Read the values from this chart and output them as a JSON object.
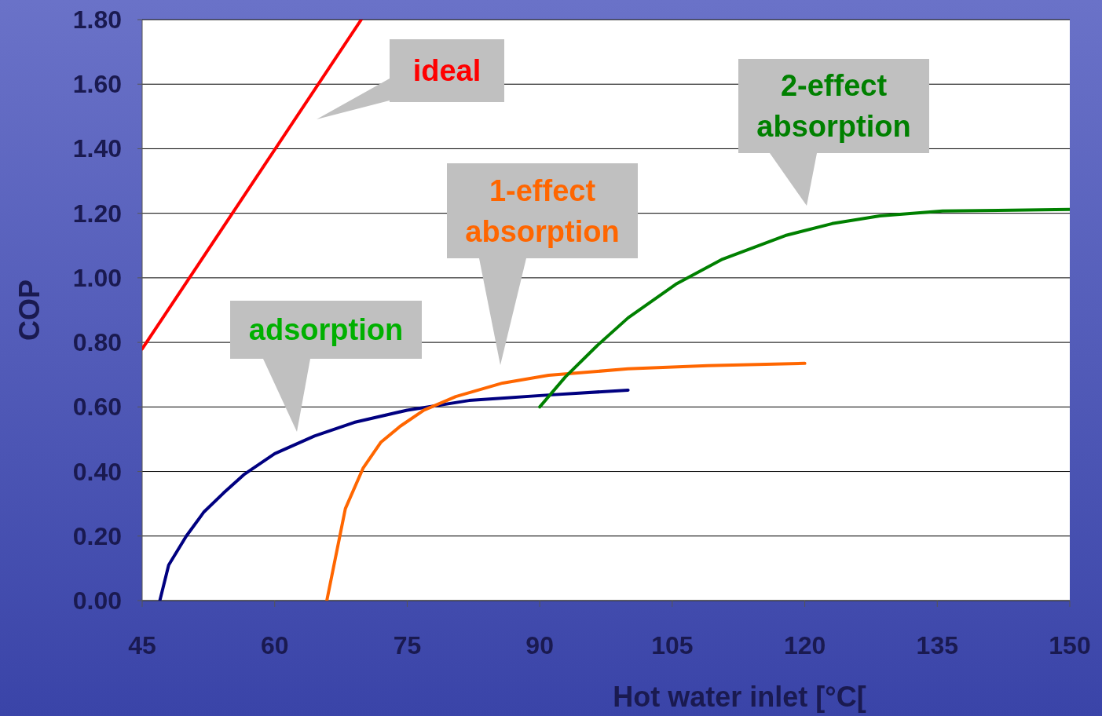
{
  "chart_data": {
    "type": "line",
    "xlabel": "Hot water inlet [°C[",
    "ylabel": "COP",
    "xlim": [
      45,
      150
    ],
    "xticks": [
      45,
      60,
      75,
      90,
      105,
      120,
      135,
      150
    ],
    "ylim": [
      0,
      1.8
    ],
    "yticks": [
      {
        "value": 0,
        "label": "0.00"
      },
      {
        "value": 0.2,
        "label": "0.20"
      },
      {
        "value": 0.4,
        "label": "0.40"
      },
      {
        "value": 0.6,
        "label": "0.60"
      },
      {
        "value": 0.8,
        "label": "0.80"
      },
      {
        "value": 1,
        "label": "1.00"
      },
      {
        "value": 1.2,
        "label": "1.20"
      },
      {
        "value": 1.4,
        "label": "1.40"
      },
      {
        "value": 1.6,
        "label": "1.60"
      },
      {
        "value": 1.8,
        "label": "1.80"
      }
    ],
    "grid": "y",
    "marker": "none",
    "series": [
      {
        "name": "ideal",
        "color": "#ff0000",
        "x": [
          45,
          69.8
        ],
        "values": [
          0.78,
          1.8
        ]
      },
      {
        "name": "adsorption",
        "color": "#000080",
        "x": [
          47,
          48,
          50,
          52,
          54.2,
          56.5,
          60,
          64.5,
          69,
          75,
          82,
          91,
          100
        ],
        "values": [
          0,
          0.11,
          0.2,
          0.275,
          0.333,
          0.39,
          0.455,
          0.51,
          0.552,
          0.59,
          0.62,
          0.637,
          0.652
        ]
      },
      {
        "name": "1-effect absorption",
        "color": "#ff6600",
        "x": [
          65.9,
          68,
          70,
          72,
          74.2,
          76.9,
          80.5,
          85.8,
          91,
          100,
          109,
          120
        ],
        "values": [
          0,
          0.285,
          0.41,
          0.49,
          0.54,
          0.59,
          0.632,
          0.674,
          0.698,
          0.718,
          0.728,
          0.735
        ]
      },
      {
        "name": "2-effect absorption",
        "color": "#008000",
        "x": [
          90,
          92.9,
          96.5,
          100,
          105.4,
          110.7,
          117.8,
          123.1,
          128.5,
          135.6,
          150
        ],
        "values": [
          0.6,
          0.693,
          0.79,
          0.876,
          0.98,
          1.058,
          1.131,
          1.168,
          1.192,
          1.207,
          1.212
        ]
      }
    ]
  }
}
